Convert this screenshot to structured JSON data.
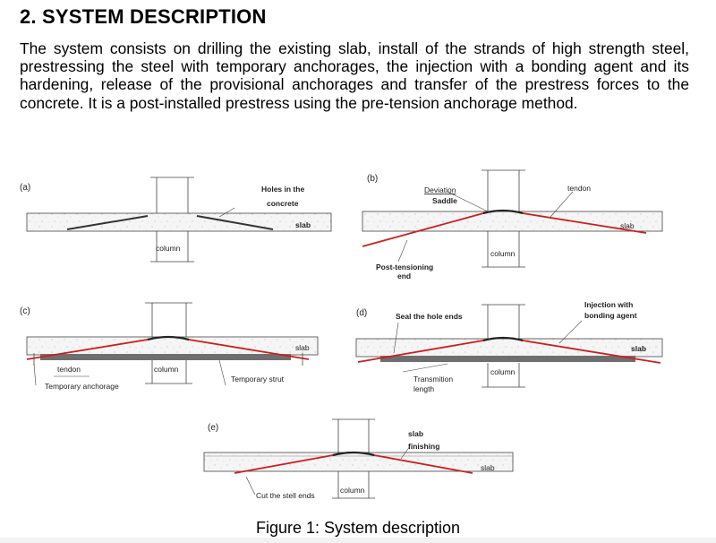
{
  "section": {
    "heading": "2. SYSTEM DESCRIPTION",
    "paragraph": "The system consists on drilling the existing slab, install of the strands of high strength steel, prestressing the steel with temporary anchorages, the injection with a bonding agent and its hardening, release of the provisional anchorages and transfer of the prestress forces to the concrete. It is a post-installed prestress using the pre-tension anchorage method."
  },
  "figure": {
    "caption": "Figure 1: System description",
    "panels": {
      "a": {
        "tag": "(a)",
        "labels": {
          "holes_line1": "Holes in the",
          "holes_line2": "concrete",
          "slab": "slab",
          "column": "column"
        }
      },
      "b": {
        "tag": "(b)",
        "labels": {
          "deviation": "Deviation",
          "saddle": "Saddle",
          "tendon": "tendon",
          "slab": "slab",
          "column": "column",
          "post_line1": "Post-tensioning",
          "post_line2": "end"
        }
      },
      "c": {
        "tag": "(c)",
        "labels": {
          "slab": "slab",
          "tendon": "tendon",
          "column": "column",
          "temporary_strut": "Temporary strut",
          "temporary_anchorage": "Temporary anchorage"
        }
      },
      "d": {
        "tag": "(d)",
        "labels": {
          "seal": "Seal the hole ends",
          "injection_line1": "Injection with",
          "injection_line2": "bonding agent",
          "slab": "slab",
          "column": "column",
          "transmission_line1": "Transmition",
          "transmission_line2": "length"
        }
      },
      "e": {
        "tag": "(e)",
        "labels": {
          "slab_finishing_line1": "slab",
          "slab_finishing_line2": "finishing",
          "slab": "slab",
          "cut": "Cut the stell ends",
          "column": "column"
        }
      }
    },
    "colors": {
      "tendon": "#cc1f1f",
      "slab_fill": "#f4f4f4",
      "strut": "#6f6f6f",
      "line": "#333333"
    }
  }
}
